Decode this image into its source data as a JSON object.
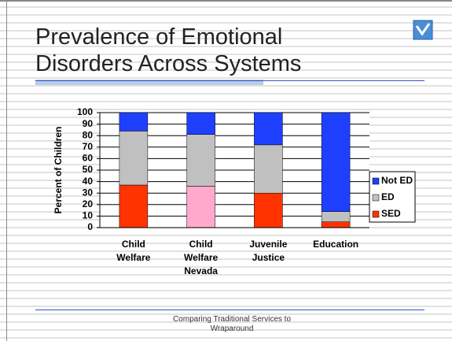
{
  "header": {
    "title": "Prevalence of Emotional Disorders Across Systems"
  },
  "footer": {
    "text": "Comparing Traditional Services to Wraparound"
  },
  "chart_data": {
    "type": "stacked_bar",
    "ylabel": "Percent of Children",
    "categories": [
      "Child Welfare",
      "Child Welfare Nevada",
      "Juvenile Justice",
      "Education"
    ],
    "series": [
      {
        "name": "SED",
        "color": "#ff3300",
        "point_colors": [
          "#ff3300",
          "#ffaacc",
          "#ff3300",
          "#ff3300"
        ],
        "values": [
          37,
          36,
          30,
          5
        ]
      },
      {
        "name": "ED",
        "color": "#c0c0c0",
        "values": [
          47,
          45,
          42,
          9
        ]
      },
      {
        "name": "Not ED",
        "color": "#1f3fff",
        "values": [
          16,
          19,
          28,
          86
        ]
      }
    ],
    "ylim": [
      0,
      100
    ],
    "yticks": [
      0,
      10,
      20,
      30,
      40,
      50,
      60,
      70,
      80,
      90,
      100
    ],
    "grid": true,
    "legend": "right"
  }
}
